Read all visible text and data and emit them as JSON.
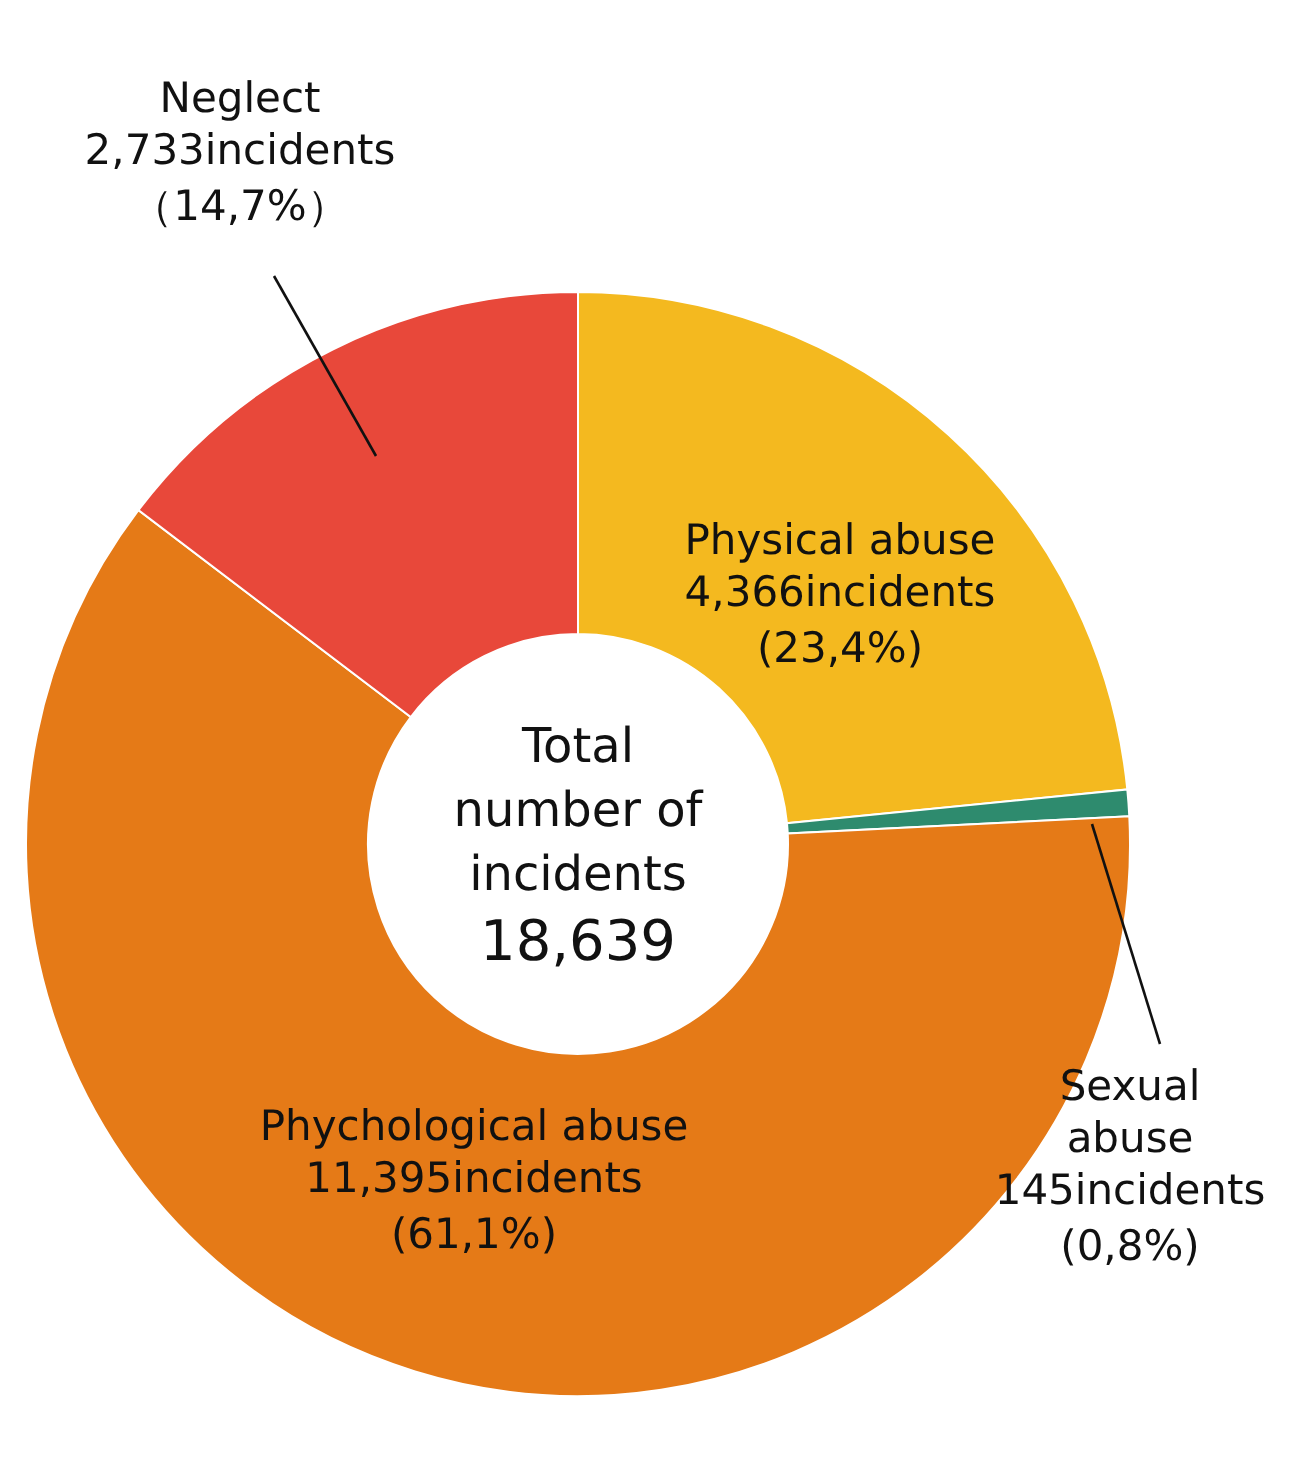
{
  "chart_data": {
    "type": "donut",
    "categories": [
      "Physical abuse",
      "Sexual\nabuse",
      "Phychological abuse",
      "Neglect"
    ],
    "values": [
      4366,
      145,
      11395,
      2733
    ],
    "value_labels": [
      "4,366incidents\n(23,4%)",
      "145incidents\n(0,8%)",
      "11,395incidents\n(61,1%)",
      "2,733incidents\n（14,7%）"
    ],
    "colors": [
      "#f4b91f",
      "#2e8b6e",
      "#e57a17",
      "#e8483a"
    ],
    "annotations": [
      "Total\nnumber of\nincidents",
      "18,639"
    ]
  }
}
